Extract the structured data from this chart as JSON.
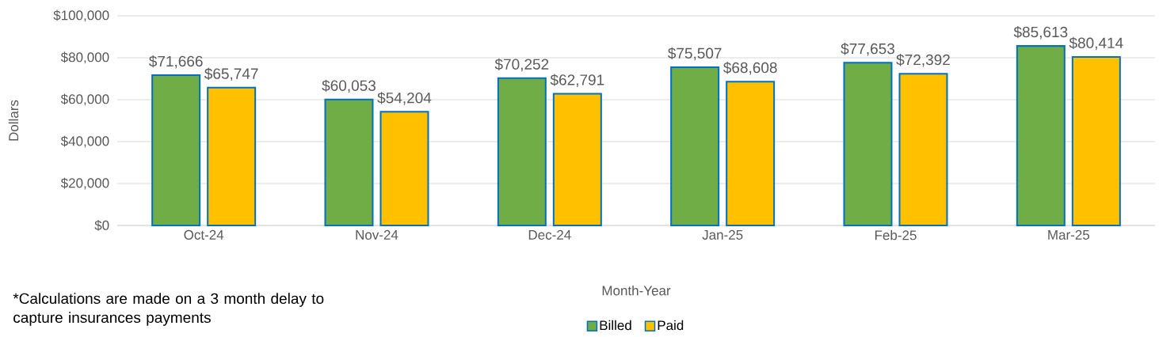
{
  "chart_data": {
    "type": "bar",
    "xlabel": "Month-Year",
    "ylabel": "Dollars",
    "categories": [
      "Oct-24",
      "Nov-24",
      "Dec-24",
      "Jan-25",
      "Feb-25",
      "Mar-25"
    ],
    "series": [
      {
        "name": "Billed",
        "color": "#70ad47",
        "values": [
          71666,
          60053,
          70252,
          75507,
          77653,
          85613
        ],
        "value_labels": [
          "$71,666",
          "$60,053",
          "$70,252",
          "$75,507",
          "$77,653",
          "$85,613"
        ]
      },
      {
        "name": "Paid",
        "color": "#ffc000",
        "values": [
          65747,
          54204,
          62791,
          68608,
          72392,
          80414
        ],
        "value_labels": [
          "$65,747",
          "$54,204",
          "$62,791",
          "$68,608",
          "$72,392",
          "$80,414"
        ]
      }
    ],
    "ylim": [
      0,
      100000
    ],
    "yticks": [
      {
        "value": 0,
        "label": "$0"
      },
      {
        "value": 20000,
        "label": "$20,000"
      },
      {
        "value": 40000,
        "label": "$40,000"
      },
      {
        "value": 60000,
        "label": "$60,000"
      },
      {
        "value": 80000,
        "label": "$80,000"
      },
      {
        "value": 100000,
        "label": "$100,000"
      }
    ],
    "grid": "y",
    "legend": "bottom",
    "annotations": [
      "*Calculations are made on a 3 month delay to capture insurances payments"
    ]
  }
}
